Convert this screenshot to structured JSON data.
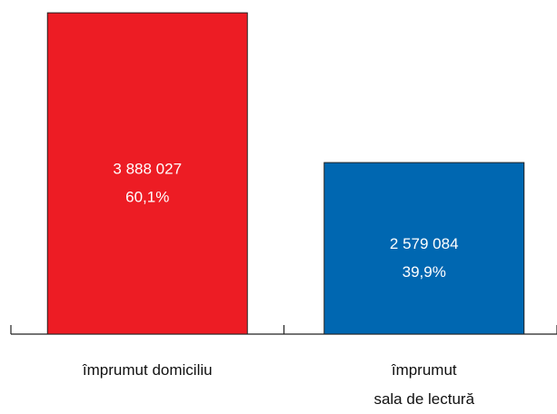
{
  "chart_data": {
    "type": "bar",
    "categories": [
      "împrumut domiciliu",
      "împrumut\nsala de lectură"
    ],
    "values": [
      3888027,
      2579084
    ],
    "value_labels": [
      "3 888 027",
      "2 579 084"
    ],
    "percentages": [
      60.1,
      39.9
    ],
    "percentage_labels": [
      "60,1%",
      "39,9%"
    ],
    "colors": [
      "#ed1c24",
      "#0067b1"
    ],
    "ylim": [
      1080000,
      4000000
    ]
  }
}
